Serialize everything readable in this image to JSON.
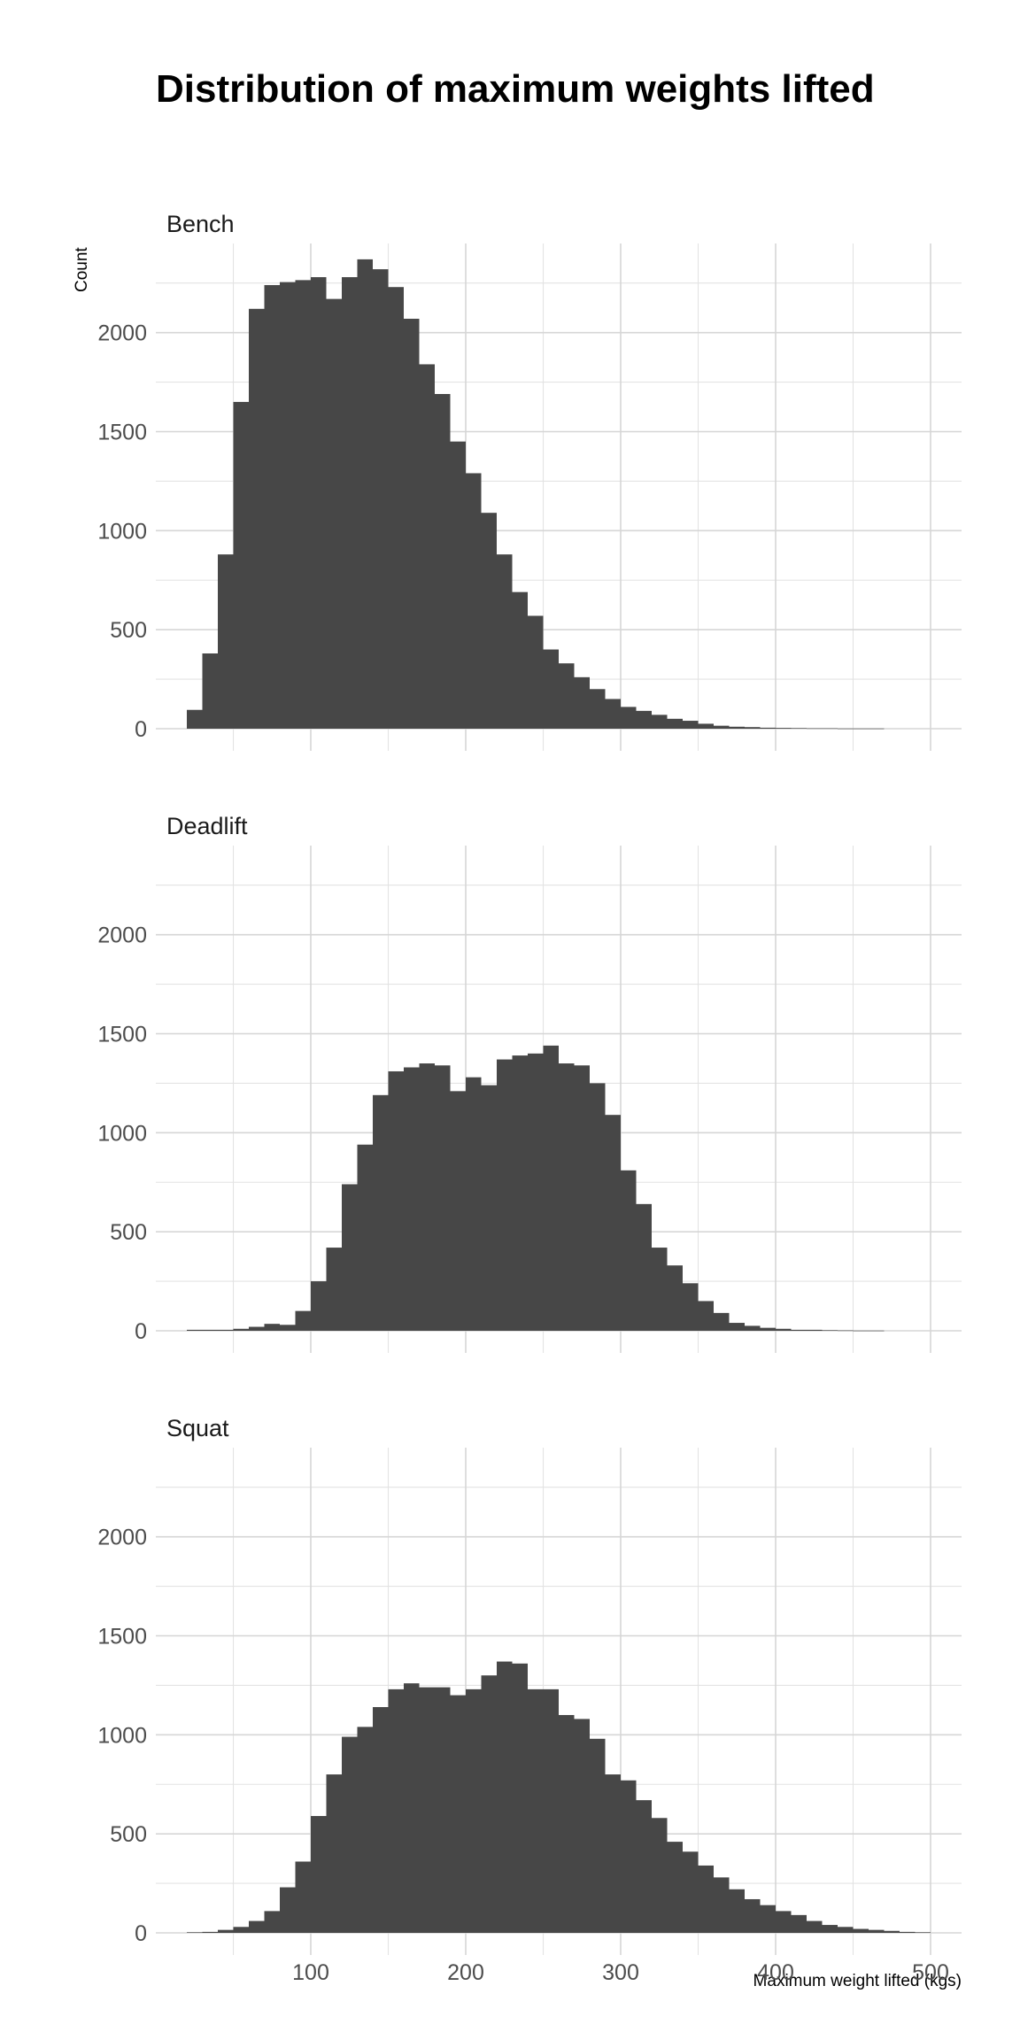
{
  "chart_data": {
    "type": "bar",
    "title": "Distribution of maximum weights lifted",
    "xlabel": "Maximum weight lifted (kgs)",
    "ylabel": "Count",
    "xlim": [
      0,
      520
    ],
    "ylim": [
      0,
      2450
    ],
    "x_ticks": [
      100,
      200,
      300,
      400,
      500
    ],
    "y_ticks": [
      0,
      500,
      1000,
      1500,
      2000
    ],
    "grid": true,
    "bin_width": 10,
    "bin_starts": [
      20,
      30,
      40,
      50,
      60,
      70,
      80,
      90,
      100,
      110,
      120,
      130,
      140,
      150,
      160,
      170,
      180,
      190,
      200,
      210,
      220,
      230,
      240,
      250,
      260,
      270,
      280,
      290,
      300,
      310,
      320,
      330,
      340,
      350,
      360,
      370,
      380,
      390,
      400,
      410,
      420,
      430,
      440,
      450,
      460,
      470,
      480,
      490
    ],
    "panels": [
      {
        "name": "Bench",
        "values": [
          95,
          380,
          880,
          1650,
          2120,
          2240,
          2255,
          2265,
          2280,
          2170,
          2280,
          2370,
          2320,
          2230,
          2070,
          1840,
          1690,
          1450,
          1290,
          1090,
          880,
          690,
          570,
          400,
          330,
          260,
          200,
          150,
          110,
          90,
          70,
          50,
          40,
          25,
          15,
          10,
          8,
          5,
          4,
          3,
          2,
          2,
          1,
          1,
          1,
          0,
          0,
          0
        ]
      },
      {
        "name": "Deadlift",
        "values": [
          5,
          5,
          5,
          10,
          20,
          35,
          30,
          100,
          250,
          420,
          740,
          940,
          1190,
          1310,
          1330,
          1350,
          1340,
          1210,
          1280,
          1240,
          1370,
          1390,
          1400,
          1440,
          1350,
          1340,
          1250,
          1090,
          810,
          640,
          420,
          330,
          240,
          150,
          90,
          40,
          25,
          15,
          10,
          5,
          5,
          3,
          2,
          1,
          1,
          0,
          0,
          0
        ]
      },
      {
        "name": "Squat",
        "values": [
          3,
          5,
          15,
          30,
          60,
          110,
          230,
          360,
          590,
          800,
          990,
          1040,
          1140,
          1230,
          1260,
          1240,
          1240,
          1200,
          1230,
          1300,
          1370,
          1360,
          1230,
          1230,
          1100,
          1080,
          980,
          800,
          770,
          670,
          580,
          460,
          410,
          340,
          280,
          220,
          170,
          140,
          110,
          90,
          60,
          40,
          30,
          20,
          15,
          10,
          5,
          3
        ]
      }
    ]
  }
}
